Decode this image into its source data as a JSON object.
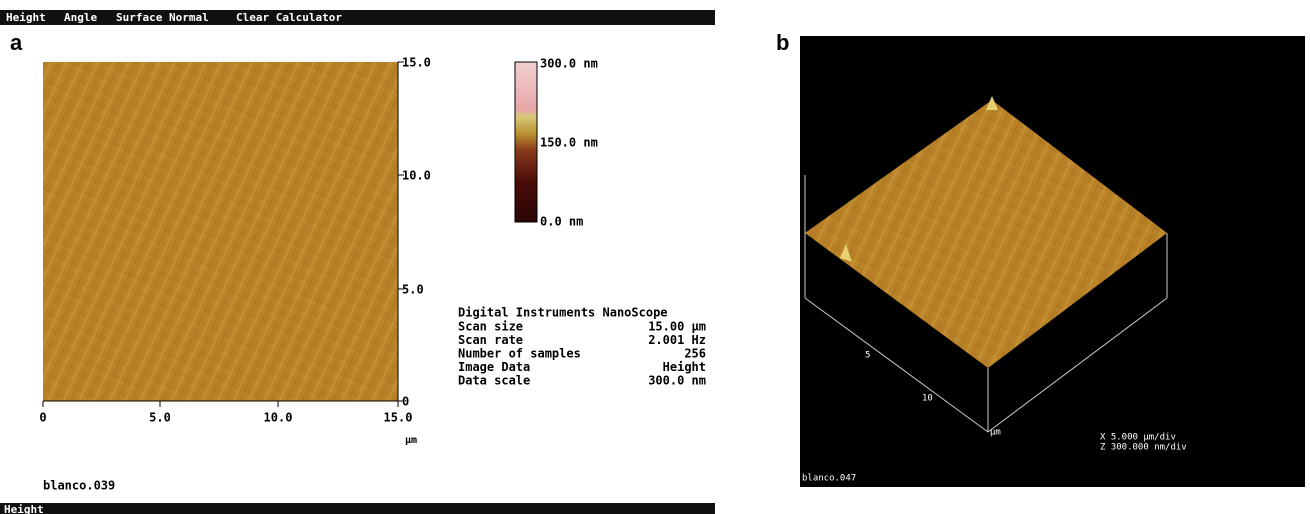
{
  "panel_a": {
    "menu": [
      "Height",
      "Angle",
      "Surface Normal",
      "Clear Calculator"
    ],
    "label": "a",
    "y_ticks": [
      "15.0",
      "10.0",
      "5.0",
      "0"
    ],
    "x_ticks": [
      "0",
      "5.0",
      "10.0",
      "15.0"
    ],
    "x_unit": "µm",
    "colorbar": [
      "300.0 nm",
      "150.0 nm",
      "0.0 nm"
    ],
    "info_header": "Digital Instruments NanoScope",
    "info_rows": [
      [
        "Scan size",
        "15.00 µm"
      ],
      [
        "Scan rate",
        "2.001 Hz"
      ],
      [
        "Number of samples",
        "256"
      ],
      [
        "Image Data",
        "Height"
      ],
      [
        "Data scale",
        "300.0 nm"
      ]
    ],
    "filename": "blanco.039",
    "status": "Height"
  },
  "panel_b": {
    "label": "b",
    "axis_ticks": [
      "5",
      "10"
    ],
    "axis_unit": "µm",
    "scale_x": "X 5.000 µm/div",
    "scale_z": "Z 300.000 nm/div",
    "filename": "blanco.047"
  }
}
